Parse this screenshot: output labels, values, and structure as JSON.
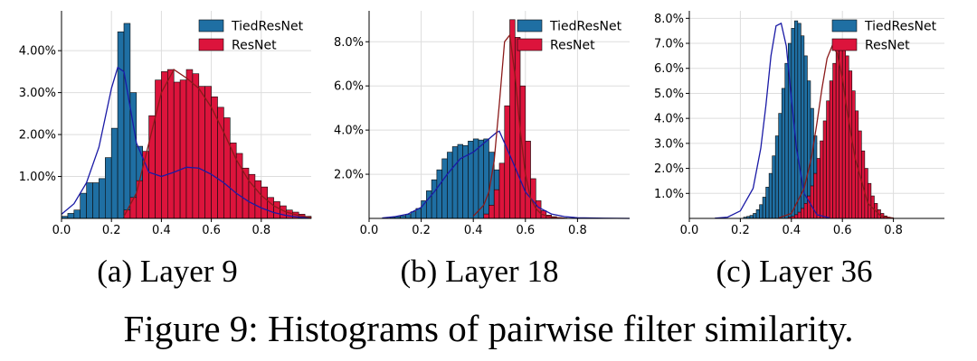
{
  "figure_caption": "Figure 9: Histograms of pairwise filter similarity.",
  "colors": {
    "tied": "#1f6fa3",
    "resnet": "#dc143c",
    "tied_kde": "#1a1aa6",
    "resnet_kde": "#8b1a1a",
    "bar_edge": "#0a0a0a",
    "grid": "#dddddd"
  },
  "legend_labels": [
    "TiedResNet",
    "ResNet"
  ],
  "chart_data": [
    {
      "type": "bar",
      "caption": "(a) Layer 9",
      "xlim": [
        0,
        1.0
      ],
      "ylim": [
        0,
        4.95
      ],
      "xticks": [
        0.0,
        0.2,
        0.4,
        0.6,
        0.8
      ],
      "xtick_labels": [
        "0.0",
        "0.2",
        "0.4",
        "0.6",
        "0.8"
      ],
      "yticks": [
        1,
        2,
        3,
        4
      ],
      "ytick_labels": [
        "1.00%",
        "2.00%",
        "3.00%",
        "4.00%"
      ],
      "grid": true,
      "legend": "top-right",
      "bin_width": 0.025,
      "series": [
        {
          "name": "TiedResNet",
          "bin_start": 0.0,
          "values": [
            0.05,
            0.12,
            0.2,
            0.6,
            0.85,
            0.85,
            0.95,
            1.45,
            2.15,
            4.45,
            4.65,
            3.0,
            1.72,
            1.27,
            1.02,
            0.95,
            1.05,
            1.1,
            1.15,
            1.15,
            1.17,
            1.15,
            1.1,
            1.12,
            1.05,
            0.9,
            0.8,
            0.7,
            0.65,
            0.55,
            0.42,
            0.35,
            0.25,
            0.2,
            0.15,
            0.12,
            0.08,
            0.05,
            0.03,
            0.02
          ],
          "kde_x": [
            0.0,
            0.05,
            0.1,
            0.15,
            0.2,
            0.225,
            0.25,
            0.3,
            0.35,
            0.4,
            0.45,
            0.5,
            0.55,
            0.6,
            0.65,
            0.7,
            0.75,
            0.8,
            0.85,
            0.9,
            0.95,
            1.0
          ],
          "kde_y": [
            0.1,
            0.35,
            0.85,
            1.7,
            3.1,
            3.6,
            3.5,
            1.8,
            1.1,
            1.0,
            1.1,
            1.22,
            1.2,
            1.05,
            0.85,
            0.6,
            0.4,
            0.25,
            0.14,
            0.07,
            0.03,
            0.01
          ]
        },
        {
          "name": "ResNet",
          "bin_start": 0.0,
          "values": [
            0,
            0,
            0,
            0,
            0,
            0,
            0,
            0,
            0,
            0,
            0.2,
            0.5,
            0.9,
            1.6,
            2.45,
            3.3,
            3.5,
            3.55,
            3.25,
            3.3,
            3.55,
            3.45,
            3.15,
            3.15,
            2.9,
            2.65,
            2.4,
            1.8,
            1.55,
            1.2,
            1.05,
            0.9,
            0.75,
            0.5,
            0.4,
            0.3,
            0.2,
            0.15,
            0.1,
            0.05
          ],
          "kde_x": [
            0.25,
            0.3,
            0.35,
            0.4,
            0.45,
            0.5,
            0.55,
            0.6,
            0.65,
            0.7,
            0.75,
            0.8,
            0.85,
            0.9,
            0.95,
            1.0
          ],
          "kde_y": [
            0.05,
            0.6,
            1.8,
            3.0,
            3.55,
            3.35,
            3.1,
            2.65,
            2.05,
            1.4,
            0.9,
            0.55,
            0.3,
            0.15,
            0.07,
            0.02
          ]
        }
      ]
    },
    {
      "type": "bar",
      "caption": "(b) Layer 18",
      "xlim": [
        0,
        1.0
      ],
      "ylim": [
        0,
        9.4
      ],
      "xticks": [
        0.0,
        0.2,
        0.4,
        0.6,
        0.8
      ],
      "xtick_labels": [
        "0.0",
        "0.2",
        "0.4",
        "0.6",
        "0.8"
      ],
      "yticks": [
        2,
        4,
        6,
        8
      ],
      "ytick_labels": [
        "2.0%",
        "4.0%",
        "6.0%",
        "8.0%"
      ],
      "grid": true,
      "legend": "top-right",
      "bin_width": 0.02,
      "series": [
        {
          "name": "TiedResNet",
          "bin_start": 0.0,
          "values": [
            0,
            0,
            0,
            0,
            0.05,
            0.08,
            0.12,
            0.18,
            0.3,
            0.45,
            0.8,
            1.25,
            1.75,
            2.2,
            2.7,
            3.0,
            3.25,
            3.35,
            3.3,
            3.5,
            3.6,
            3.55,
            3.6,
            3.0,
            2.2,
            1.5,
            1.0,
            0.6,
            0.4,
            0.2,
            0.1,
            0.07,
            0.04,
            0.02,
            0.01,
            0,
            0,
            0,
            0,
            0,
            0,
            0,
            0,
            0,
            0,
            0,
            0,
            0,
            0,
            0
          ],
          "kde_x": [
            0.05,
            0.1,
            0.15,
            0.2,
            0.25,
            0.3,
            0.35,
            0.4,
            0.45,
            0.49,
            0.5,
            0.55,
            0.6,
            0.65,
            0.7,
            0.75,
            0.8,
            0.9,
            1.0
          ],
          "kde_y": [
            0.02,
            0.08,
            0.2,
            0.5,
            1.2,
            2.0,
            2.7,
            3.0,
            3.5,
            3.9,
            3.95,
            2.6,
            1.2,
            0.5,
            0.2,
            0.08,
            0.03,
            0.01,
            0.0
          ]
        },
        {
          "name": "ResNet",
          "bin_start": 0.0,
          "values": [
            0,
            0,
            0,
            0,
            0,
            0,
            0,
            0,
            0,
            0,
            0,
            0,
            0,
            0,
            0,
            0,
            0,
            0,
            0,
            0,
            0,
            0,
            0.2,
            0.6,
            1.3,
            2.5,
            5.1,
            9.0,
            8.2,
            6.0,
            3.5,
            1.8,
            0.8,
            0.35,
            0.15,
            0.08,
            0.04,
            0.02,
            0.01,
            0,
            0,
            0,
            0,
            0,
            0,
            0,
            0,
            0,
            0,
            0
          ],
          "kde_x": [
            0.4,
            0.44,
            0.46,
            0.48,
            0.5,
            0.52,
            0.54,
            0.56,
            0.58,
            0.6,
            0.62,
            0.64,
            0.66,
            0.7,
            0.75
          ],
          "kde_y": [
            0.1,
            0.6,
            1.2,
            2.6,
            5.2,
            8.0,
            8.3,
            6.5,
            4.0,
            2.0,
            0.9,
            0.45,
            0.2,
            0.05,
            0.01
          ]
        }
      ]
    },
    {
      "type": "bar",
      "caption": "(c) Layer 36",
      "xlim": [
        0,
        1.0
      ],
      "ylim": [
        0,
        8.3
      ],
      "xticks": [
        0.0,
        0.2,
        0.4,
        0.6,
        0.8
      ],
      "xtick_labels": [
        "0.0",
        "0.2",
        "0.4",
        "0.6",
        "0.8"
      ],
      "yticks": [
        1,
        2,
        3,
        4,
        5,
        6,
        7,
        8
      ],
      "ytick_labels": [
        "1.0%",
        "2.0%",
        "3.0%",
        "4.0%",
        "5.0%",
        "6.0%",
        "7.0%",
        "8.0%"
      ],
      "grid": true,
      "legend": "top-right",
      "bin_width": 0.0125,
      "series": [
        {
          "name": "TiedResNet",
          "bin_start": 0.2125,
          "values": [
            0.05,
            0.08,
            0.12,
            0.2,
            0.35,
            0.55,
            0.85,
            1.25,
            1.8,
            2.5,
            3.3,
            4.2,
            5.2,
            6.2,
            7.0,
            7.6,
            7.9,
            7.8,
            7.3,
            6.5,
            5.5,
            4.4,
            3.3,
            2.3,
            1.5,
            0.9,
            0.5,
            0.25,
            0.12,
            0.05
          ],
          "kde_x": [
            0.1,
            0.15,
            0.2,
            0.25,
            0.28,
            0.3,
            0.32,
            0.34,
            0.36,
            0.38,
            0.4,
            0.42,
            0.45,
            0.5,
            0.55
          ],
          "kde_y": [
            0.01,
            0.05,
            0.3,
            1.2,
            2.8,
            4.5,
            6.5,
            7.7,
            7.8,
            6.9,
            4.8,
            2.8,
            1.0,
            0.15,
            0.02
          ]
        },
        {
          "name": "ResNet",
          "bin_start": 0.3875,
          "values": [
            0.05,
            0.08,
            0.15,
            0.25,
            0.4,
            0.6,
            0.9,
            1.3,
            1.8,
            2.4,
            3.1,
            3.9,
            4.7,
            5.5,
            6.2,
            6.8,
            7.0,
            6.9,
            6.5,
            5.9,
            5.1,
            4.3,
            3.5,
            2.7,
            2.0,
            1.4,
            0.9,
            0.6,
            0.35,
            0.2,
            0.1,
            0.05,
            0.03
          ],
          "kde_x": [
            0.35,
            0.4,
            0.45,
            0.48,
            0.5,
            0.52,
            0.54,
            0.56,
            0.58,
            0.6,
            0.62,
            0.65,
            0.7,
            0.75,
            0.8
          ],
          "kde_y": [
            0.02,
            0.2,
            1.2,
            2.5,
            3.8,
            5.2,
            6.4,
            6.9,
            6.6,
            5.6,
            4.2,
            2.4,
            0.6,
            0.1,
            0.01
          ]
        }
      ]
    }
  ]
}
